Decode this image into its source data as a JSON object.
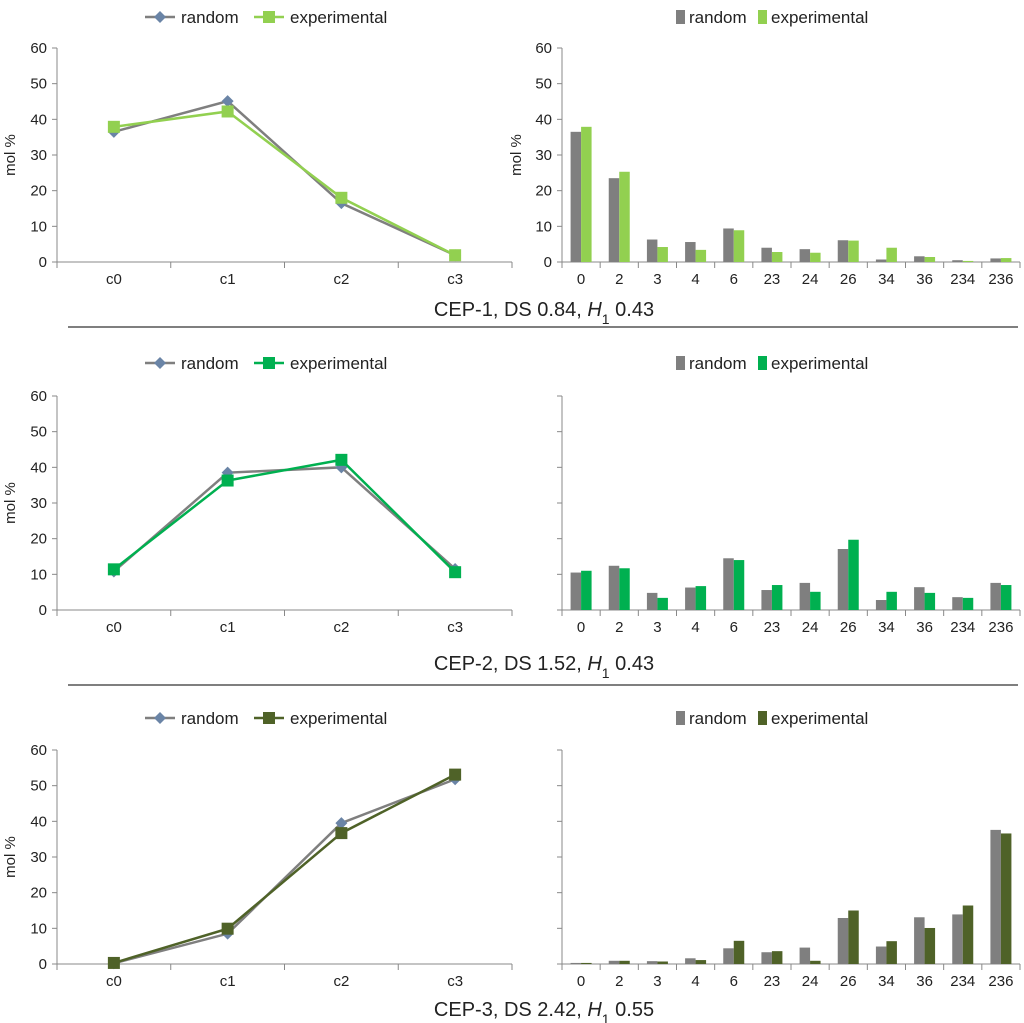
{
  "colors": {
    "random": "#7f7f7f",
    "random_line": "#7f7f7f",
    "random_marker": "#6a84a6",
    "exp1": "#92d050",
    "exp2": "#00b050",
    "exp3": "#4f6228"
  },
  "chart_data": [
    {
      "type": "line",
      "ylabel": "mol %",
      "ylim": [
        0,
        60
      ],
      "yticks": [
        "0",
        "10",
        "20",
        "30",
        "40",
        "50",
        "60"
      ],
      "categories": [
        "c0",
        "c1",
        "c2",
        "c3"
      ],
      "legend": "top",
      "caption": {
        "prefix": "CEP-1, DS 0.84, ",
        "h": "H",
        "sub": "1",
        "suffix": " 0.43"
      },
      "series": [
        {
          "name": "random",
          "marker": "diamond",
          "values": [
            36.5,
            45.1,
            16.5,
            1.9
          ]
        },
        {
          "name": "experimental",
          "marker": "square",
          "values": [
            37.9,
            42.2,
            18.0,
            1.9
          ]
        }
      ]
    },
    {
      "type": "bar",
      "ylabel": "mol %",
      "ylim": [
        0,
        60
      ],
      "yticks": [
        "0",
        "10",
        "20",
        "30",
        "40",
        "50",
        "60"
      ],
      "categories": [
        "0",
        "2",
        "3",
        "4",
        "6",
        "23",
        "24",
        "26",
        "34",
        "36",
        "234",
        "236"
      ],
      "legend": "top",
      "series": [
        {
          "name": "random",
          "values": [
            36.5,
            23.5,
            6.3,
            5.6,
            9.4,
            4.0,
            3.6,
            6.1,
            0.7,
            1.6,
            0.5,
            1.0
          ]
        },
        {
          "name": "experimental",
          "values": [
            37.9,
            25.3,
            4.2,
            3.4,
            8.9,
            2.8,
            2.6,
            6.0,
            4.0,
            1.4,
            0.3,
            1.1
          ]
        }
      ]
    },
    {
      "type": "line",
      "ylabel": "mol %",
      "ylim": [
        0,
        60
      ],
      "yticks": [
        "0",
        "10",
        "20",
        "30",
        "40",
        "50",
        "60"
      ],
      "categories": [
        "c0",
        "c1",
        "c2",
        "c3"
      ],
      "legend": "top",
      "caption": {
        "prefix": "CEP-2, DS 1.52, ",
        "h": "H",
        "sub": "1",
        "suffix": " 0.43"
      },
      "series": [
        {
          "name": "random",
          "marker": "diamond",
          "values": [
            10.8,
            38.5,
            40.0,
            11.5
          ]
        },
        {
          "name": "experimental",
          "marker": "square",
          "values": [
            11.4,
            36.3,
            42.1,
            10.6
          ]
        }
      ]
    },
    {
      "type": "bar",
      "ylim": [
        0,
        60
      ],
      "categories": [
        "0",
        "2",
        "3",
        "4",
        "6",
        "23",
        "24",
        "26",
        "34",
        "36",
        "234",
        "236"
      ],
      "legend": "top",
      "series": [
        {
          "name": "random",
          "values": [
            10.5,
            12.4,
            4.8,
            6.3,
            14.5,
            5.6,
            7.6,
            17.1,
            2.8,
            6.4,
            3.6,
            7.6
          ]
        },
        {
          "name": "experimental",
          "values": [
            11.0,
            11.7,
            3.4,
            6.7,
            14.0,
            7.0,
            5.1,
            19.7,
            5.1,
            4.8,
            3.4,
            7.0
          ]
        }
      ]
    },
    {
      "type": "line",
      "ylabel": "mol %",
      "ylim": [
        0,
        60
      ],
      "yticks": [
        "0",
        "10",
        "20",
        "30",
        "40",
        "50",
        "60"
      ],
      "categories": [
        "c0",
        "c1",
        "c2",
        "c3"
      ],
      "legend": "top",
      "caption": {
        "prefix": "CEP-3, DS 2.42, ",
        "h": "H",
        "sub": "1",
        "suffix": " 0.55"
      },
      "series": [
        {
          "name": "random",
          "marker": "diamond",
          "values": [
            0.2,
            8.5,
            39.5,
            51.8
          ]
        },
        {
          "name": "experimental",
          "marker": "square",
          "values": [
            0.3,
            9.9,
            36.7,
            53.1
          ]
        }
      ]
    },
    {
      "type": "bar",
      "ylim": [
        0,
        60
      ],
      "categories": [
        "0",
        "2",
        "3",
        "4",
        "6",
        "23",
        "24",
        "26",
        "34",
        "36",
        "234",
        "236"
      ],
      "legend": "top",
      "series": [
        {
          "name": "random",
          "values": [
            0.3,
            0.9,
            0.8,
            1.6,
            4.4,
            3.3,
            4.6,
            12.9,
            4.9,
            13.1,
            13.9,
            37.6
          ]
        },
        {
          "name": "experimental",
          "values": [
            0.3,
            0.9,
            0.7,
            1.1,
            6.5,
            3.6,
            0.9,
            15.0,
            6.4,
            10.1,
            16.4,
            36.6
          ]
        }
      ]
    }
  ]
}
